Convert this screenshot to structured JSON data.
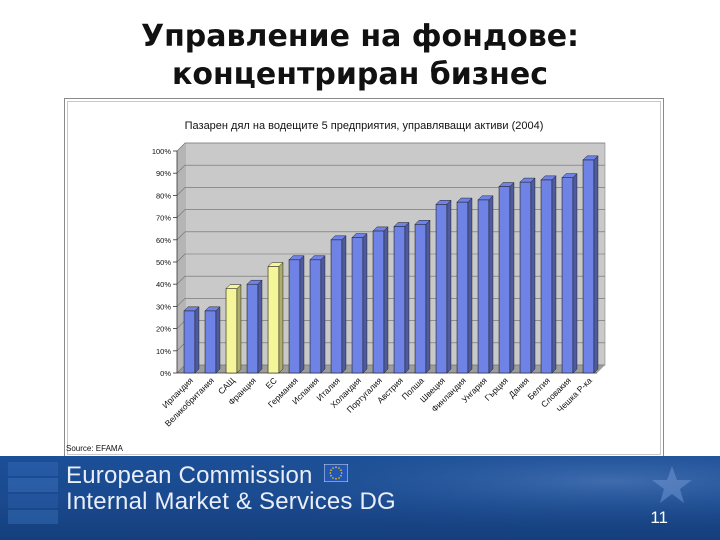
{
  "slide": {
    "title": "Управление на фондове: концентриран бизнес",
    "source": "Source: EFAMA",
    "footer_line1": "European Commission",
    "footer_line2": "Internal Market & Services DG",
    "page_number": "11"
  },
  "colors": {
    "bar_default": "#6f82e6",
    "bar_highlight": "#f5f59a",
    "footer_bg": "#1a4a8f",
    "plot_wall": "#c9c9c9"
  },
  "chart_data": {
    "type": "bar",
    "title": "Пазарен дял на водещите 5 предприятия, управляващи активи (2004)",
    "xlabel": "",
    "ylabel": "",
    "ylim": [
      0,
      100
    ],
    "yticks": [
      "0%",
      "10%",
      "20%",
      "30%",
      "40%",
      "50%",
      "60%",
      "70%",
      "80%",
      "90%",
      "100%"
    ],
    "categories": [
      "Ирландия",
      "Великобритания",
      "САЩ",
      "Франция",
      "ЕС",
      "Германия",
      "Испания",
      "Италия",
      "Холандия",
      "Португалия",
      "Австрия",
      "Полша",
      "Швеция",
      "Финландия",
      "Унгария",
      "Гърция",
      "Дания",
      "Белгия",
      "Словакия",
      "Чешка Р-ка"
    ],
    "values": [
      28,
      28,
      38,
      40,
      48,
      51,
      51,
      60,
      61,
      64,
      66,
      67,
      76,
      77,
      78,
      84,
      86,
      87,
      88,
      96
    ],
    "highlighted": [
      "САЩ",
      "ЕС"
    ],
    "grid": true,
    "legend": "none"
  }
}
